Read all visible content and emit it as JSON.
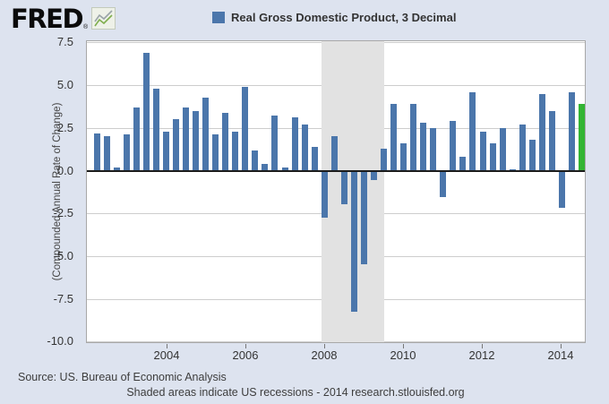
{
  "branding": {
    "logo_text": "FRED",
    "registered_mark": "®",
    "logo_icon": "line-chart-icon"
  },
  "legend": {
    "swatch_color": "#4b76ab",
    "label": "Real Gross Domestic Product, 3 Decimal"
  },
  "y_axis": {
    "title": "(Compounded Annual Rate of Change)",
    "ticks": [
      "7.5",
      "5.0",
      "2.5",
      "0.0",
      "-2.5",
      "-5.0",
      "-7.5",
      "-10.0"
    ]
  },
  "x_axis": {
    "ticks": [
      "2004",
      "2006",
      "2008",
      "2010",
      "2012",
      "2014"
    ]
  },
  "footer": {
    "source_line": "Source: US. Bureau of Economic Analysis",
    "note_line": "Shaded areas indicate US recessions - 2014 research.stlouisfed.org"
  },
  "colors": {
    "background": "#dde3ef",
    "plot_background": "#ffffff",
    "bar": "#4b76ab",
    "latest_bar": "#33b533",
    "recession_band": "#e2e2e2",
    "gridline": "#cdcdcd",
    "zero_line": "#1c1c1c"
  },
  "chart_data": {
    "type": "bar",
    "title": "Real Gross Domestic Product, 3 Decimal",
    "ylabel": "(Compounded Annual Rate of Change)",
    "ylim": [
      -10.0,
      7.5
    ],
    "y_step": 2.5,
    "grid": "on",
    "legend_position": "top-center",
    "x": [
      "2002 Q2",
      "2002 Q3",
      "2002 Q4",
      "2003 Q1",
      "2003 Q2",
      "2003 Q3",
      "2003 Q4",
      "2004 Q1",
      "2004 Q2",
      "2004 Q3",
      "2004 Q4",
      "2005 Q1",
      "2005 Q2",
      "2005 Q3",
      "2005 Q4",
      "2006 Q1",
      "2006 Q2",
      "2006 Q3",
      "2006 Q4",
      "2007 Q1",
      "2007 Q2",
      "2007 Q3",
      "2007 Q4",
      "2008 Q1",
      "2008 Q2",
      "2008 Q3",
      "2008 Q4",
      "2009 Q1",
      "2009 Q2",
      "2009 Q3",
      "2009 Q4",
      "2010 Q1",
      "2010 Q2",
      "2010 Q3",
      "2010 Q4",
      "2011 Q1",
      "2011 Q2",
      "2011 Q3",
      "2011 Q4",
      "2012 Q1",
      "2012 Q2",
      "2012 Q3",
      "2012 Q4",
      "2013 Q1",
      "2013 Q2",
      "2013 Q3",
      "2013 Q4",
      "2014 Q1",
      "2014 Q2",
      "2014 Q3"
    ],
    "values": [
      2.2,
      2.0,
      0.2,
      2.1,
      3.7,
      6.9,
      4.8,
      2.3,
      3.0,
      3.7,
      3.5,
      4.3,
      2.1,
      3.4,
      2.3,
      4.9,
      1.2,
      0.4,
      3.2,
      0.2,
      3.1,
      2.7,
      1.4,
      -2.7,
      2.0,
      -1.9,
      -8.2,
      -5.4,
      -0.5,
      1.3,
      3.9,
      1.6,
      3.9,
      2.8,
      2.5,
      -1.5,
      2.9,
      0.8,
      4.6,
      2.3,
      1.6,
      2.5,
      0.1,
      2.7,
      1.8,
      4.5,
      3.5,
      -2.1,
      4.6,
      3.9
    ],
    "highlight_index": 49,
    "recessions": [
      {
        "start": "2007 Q4",
        "end": "2009 Q2"
      }
    ]
  }
}
